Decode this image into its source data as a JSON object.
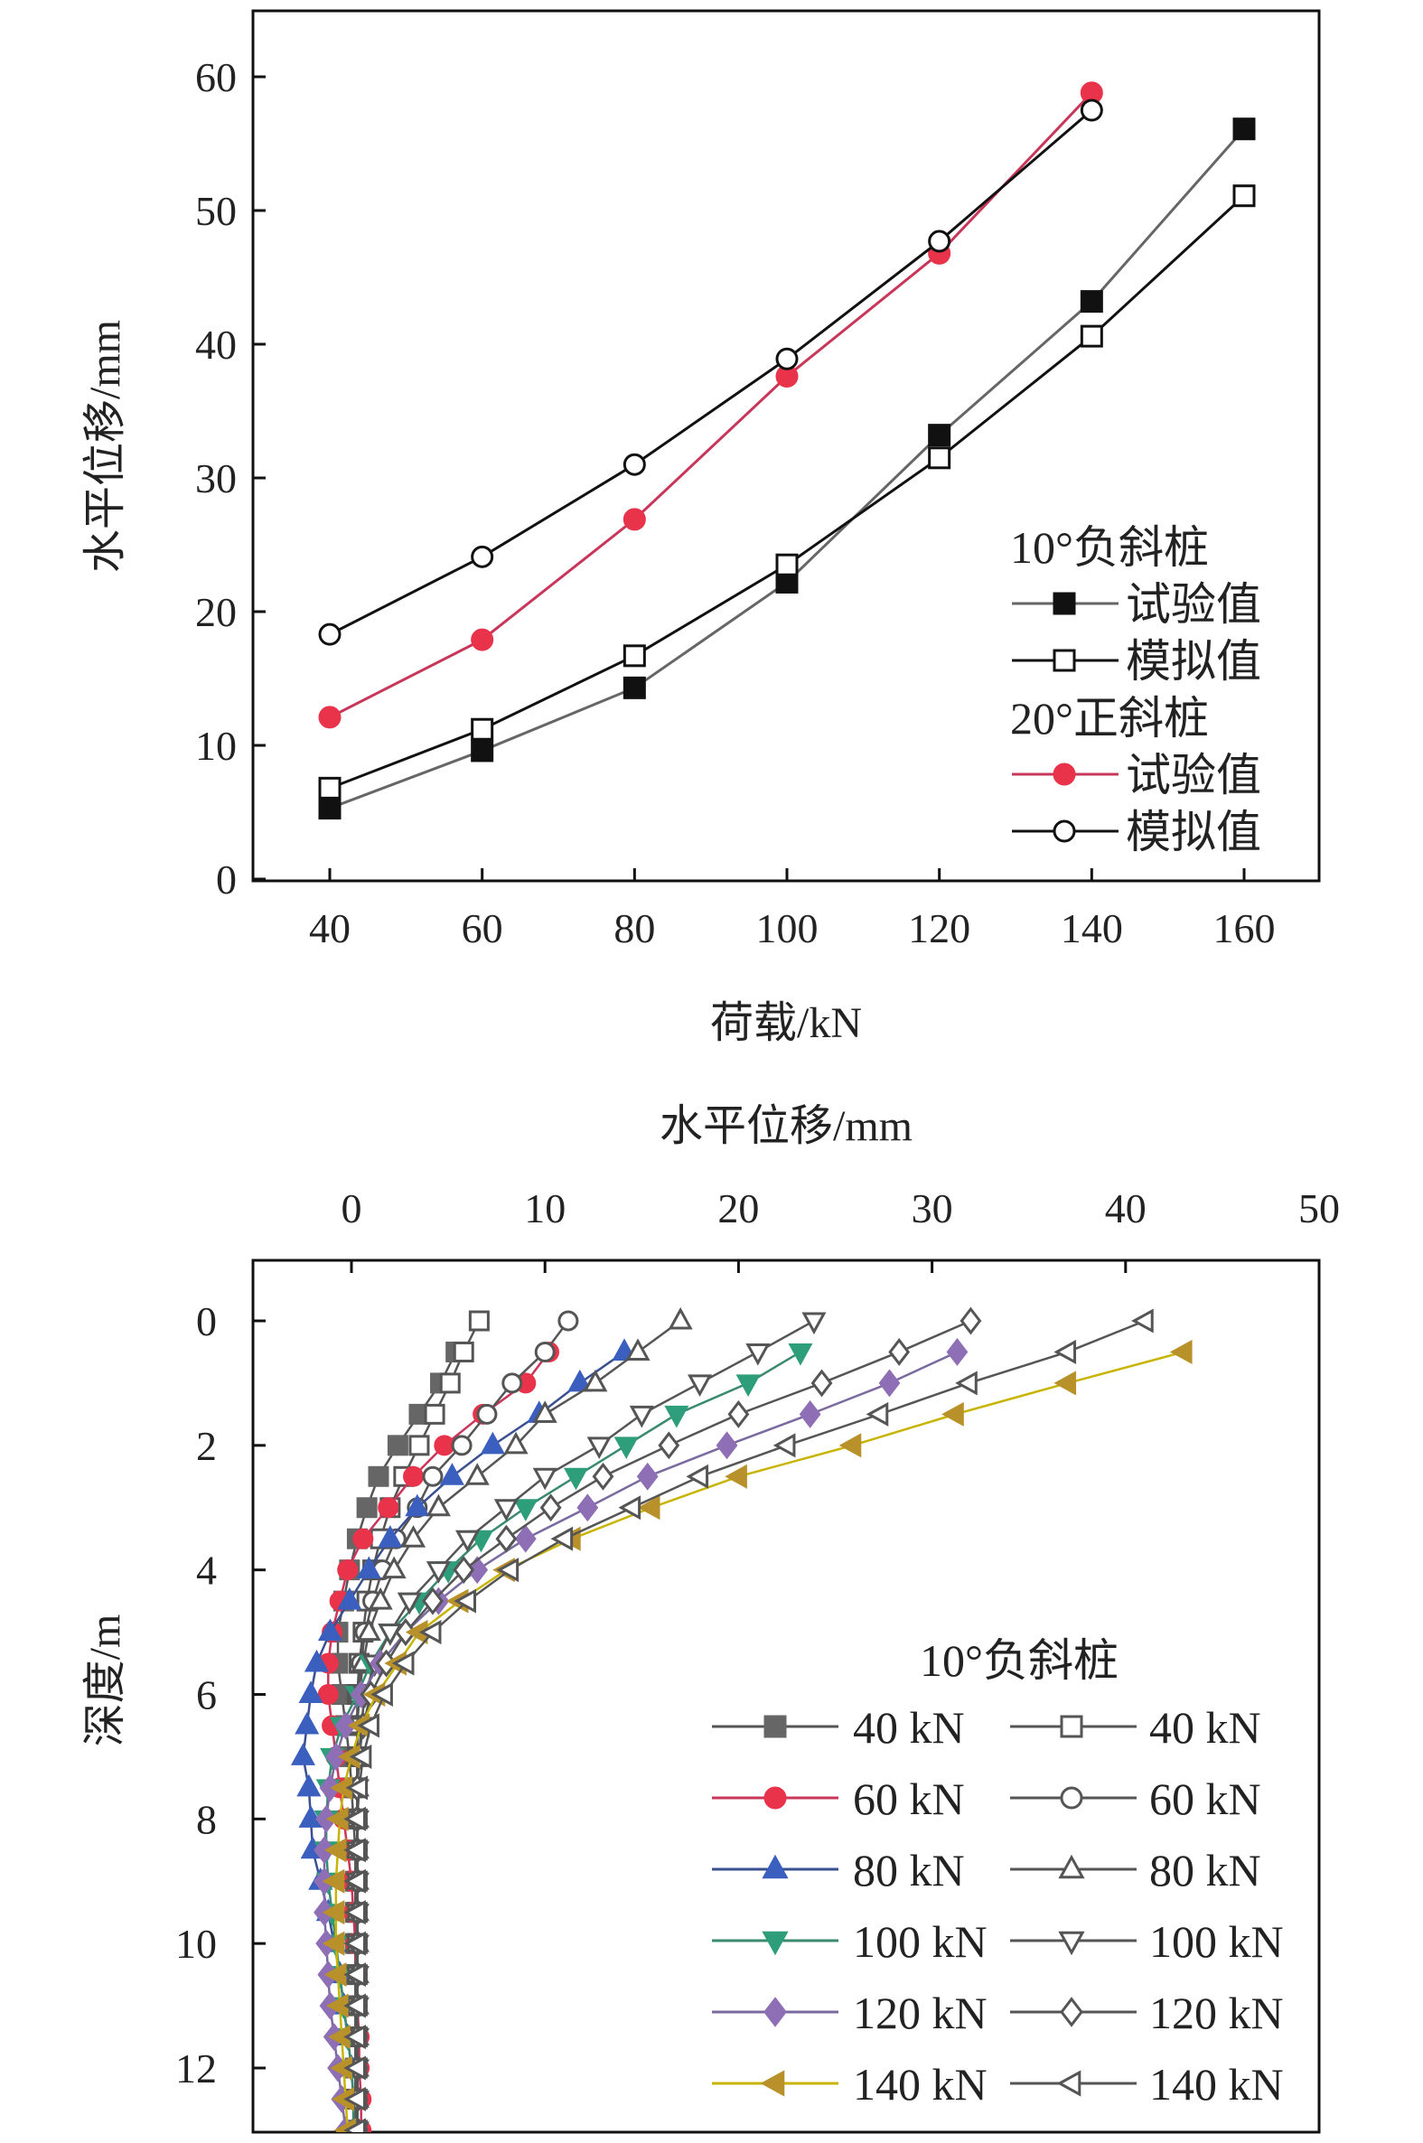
{
  "chart_data": [
    {
      "type": "line",
      "xlabel": "荷载/kN",
      "ylabel": "水平位移/mm",
      "xlim": [
        30,
        170
      ],
      "ylim": [
        0,
        65
      ],
      "xticks": [
        40,
        60,
        80,
        100,
        120,
        140,
        160
      ],
      "yticks": [
        0,
        10,
        20,
        30,
        40,
        50,
        60
      ],
      "legend_position": "bottom-right",
      "legend_groups": [
        "10°负斜桩",
        "20°正斜桩"
      ],
      "series": [
        {
          "name": "试验值",
          "group": "10°负斜桩",
          "marker": "square-filled",
          "color": "#111111",
          "line": "#666666",
          "x": [
            40,
            60,
            80,
            100,
            120,
            140,
            160
          ],
          "y": [
            5.3,
            9.6,
            14.3,
            22.2,
            33.2,
            43.2,
            56.1
          ]
        },
        {
          "name": "模拟值",
          "group": "10°负斜桩",
          "marker": "square-open",
          "color": "#111111",
          "line": "#111111",
          "x": [
            40,
            60,
            80,
            100,
            120,
            140,
            160
          ],
          "y": [
            6.8,
            11.2,
            16.7,
            23.5,
            31.5,
            40.6,
            51.1
          ]
        },
        {
          "name": "试验值",
          "group": "20°正斜桩",
          "marker": "circle-filled",
          "color": "#e8334a",
          "line": "#c8375a",
          "x": [
            40,
            60,
            80,
            100,
            120,
            140
          ],
          "y": [
            12.1,
            17.9,
            26.9,
            37.6,
            46.8,
            58.8
          ]
        },
        {
          "name": "模拟值",
          "group": "20°正斜桩",
          "marker": "circle-open",
          "color": "#111111",
          "line": "#111111",
          "x": [
            40,
            60,
            80,
            100,
            120,
            140
          ],
          "y": [
            18.3,
            24.1,
            31.0,
            38.9,
            47.7,
            57.5
          ]
        }
      ]
    },
    {
      "type": "line",
      "xlabel": "水平位移/mm",
      "ylabel": "深度/m",
      "xaxis_position": "top",
      "xlim": [
        -5,
        50
      ],
      "ylim": [
        13,
        -1
      ],
      "xticks": [
        0,
        10,
        20,
        30,
        40,
        50
      ],
      "yticks": [
        0,
        2,
        4,
        6,
        8,
        10,
        12
      ],
      "legend_title": "10°负斜桩",
      "legend_position": "bottom-right",
      "depth": [
        0,
        0.5,
        1,
        1.5,
        2,
        2.5,
        3,
        3.5,
        4,
        4.5,
        5,
        5.5,
        6,
        6.5,
        7,
        7.5,
        8,
        8.5,
        9,
        9.5,
        10,
        10.5,
        11,
        11.5,
        12,
        12.5,
        13
      ],
      "series": [
        {
          "name": "40 kN",
          "marker": "square-filled",
          "color": "#666666",
          "line": "#555555",
          "x": [
            null,
            5.4,
            4.6,
            3.5,
            2.4,
            1.4,
            0.8,
            0.3,
            -0.1,
            -0.4,
            -0.7,
            -0.7,
            -0.5,
            -0.3,
            -0.1,
            0,
            0.1,
            0.2,
            0.2,
            0.2,
            0.2,
            0.2,
            0.2,
            0.2,
            0.2,
            0.2,
            0.2
          ]
        },
        {
          "name": "40 kN",
          "marker": "square-open",
          "color": "#555555",
          "line": "#555555",
          "x": [
            6.6,
            5.8,
            5.1,
            4.3,
            3.5,
            2.7,
            2.0,
            1.5,
            1.1,
            0.8,
            0.6,
            0.4,
            0.3,
            0.3,
            0.3,
            0.3,
            0.3,
            0.3,
            0.3,
            0.3,
            0.3,
            0.3,
            0.3,
            0.3,
            0.3,
            0.3,
            0.3
          ]
        },
        {
          "name": "60 kN",
          "marker": "circle-filled",
          "color": "#e8334a",
          "line": "#c8375a",
          "x": [
            null,
            10.2,
            9.0,
            6.8,
            4.8,
            3.2,
            1.9,
            0.6,
            -0.2,
            -0.6,
            -1.0,
            -1.2,
            -1.2,
            -1.0,
            -0.8,
            -0.6,
            -0.4,
            -0.2,
            0,
            0.1,
            0.2,
            0.3,
            0.3,
            0.4,
            0.4,
            0.5,
            0.5
          ]
        },
        {
          "name": "60 kN",
          "marker": "circle-open",
          "color": "#555555",
          "line": "#555555",
          "x": [
            11.2,
            10.0,
            8.3,
            7.0,
            5.7,
            4.2,
            3.4,
            2.3,
            1.6,
            1.1,
            0.7,
            0.5,
            0.4,
            0.3,
            0.3,
            0.3,
            0.3,
            0.3,
            0.3,
            0.3,
            0.3,
            0.3,
            0.3,
            0.3,
            0.3,
            0.3,
            0.3
          ]
        },
        {
          "name": "80 kN",
          "marker": "triangle-up-filled",
          "color": "#3a5fbf",
          "line": "#3a4f8f",
          "x": [
            null,
            14.1,
            11.8,
            9.7,
            7.3,
            5.2,
            3.4,
            2.0,
            0.9,
            -0.1,
            -1.1,
            -1.8,
            -2.1,
            -2.3,
            -2.5,
            -2.2,
            -2.1,
            -2.0,
            -1.6,
            -1.2,
            -0.9,
            -0.6,
            -0.4,
            -0.2,
            0,
            0.1,
            0.1
          ]
        },
        {
          "name": "80 kN",
          "marker": "triangle-up-open",
          "color": "#555555",
          "line": "#555555",
          "x": [
            17.0,
            14.8,
            12.6,
            10.0,
            8.5,
            6.5,
            4.5,
            3.2,
            2.2,
            1.5,
            0.9,
            0.6,
            0.4,
            0.3,
            0.3,
            0.3,
            0.3,
            0.3,
            0.3,
            0.3,
            0.3,
            0.3,
            0.3,
            0.3,
            0.3,
            0.3,
            0.3
          ]
        },
        {
          "name": "100 kN",
          "marker": "triangle-down-filled",
          "color": "#2e9e7a",
          "line": "#3a8a70",
          "x": [
            null,
            23.2,
            20.5,
            16.8,
            14.2,
            11.6,
            9.0,
            6.7,
            5.0,
            3.5,
            2.0,
            1.0,
            0.3,
            -0.5,
            -1.0,
            -1.2,
            -1.3,
            -1.3,
            -1.2,
            -1.0,
            -0.8,
            -0.6,
            -0.4,
            -0.2,
            0,
            0.1,
            0.1
          ]
        },
        {
          "name": "100 kN",
          "marker": "triangle-down-open",
          "color": "#555555",
          "line": "#555555",
          "x": [
            23.9,
            21.0,
            18.0,
            15.0,
            12.8,
            10.0,
            8.0,
            6.0,
            4.5,
            3.0,
            2.0,
            1.2,
            0.7,
            0.5,
            0.4,
            0.3,
            0.3,
            0.3,
            0.3,
            0.3,
            0.3,
            0.3,
            0.3,
            0.3,
            0.3,
            0.3,
            0.3
          ]
        },
        {
          "name": "120 kN",
          "marker": "diamond-filled",
          "color": "#8e6fb5",
          "line": "#7a6aa0",
          "x": [
            null,
            31.3,
            27.8,
            23.7,
            19.4,
            15.3,
            12.2,
            9.0,
            6.5,
            4.5,
            2.8,
            1.5,
            0.5,
            -0.3,
            -0.8,
            -1.1,
            -1.3,
            -1.4,
            -1.4,
            -1.4,
            -1.3,
            -1.2,
            -1.1,
            -0.9,
            -0.7,
            -0.5,
            -0.3
          ]
        },
        {
          "name": "120 kN",
          "marker": "diamond-open",
          "color": "#555555",
          "line": "#555555",
          "x": [
            32.0,
            28.3,
            24.3,
            20.0,
            16.4,
            13.0,
            10.3,
            8.0,
            5.8,
            4.2,
            2.8,
            1.8,
            1.0,
            0.6,
            0.4,
            0.3,
            0.3,
            0.3,
            0.3,
            0.3,
            0.3,
            0.3,
            0.3,
            0.3,
            0.3,
            0.3,
            0.3
          ]
        },
        {
          "name": "140 kN",
          "marker": "triangle-left-filled",
          "color": "#b8912a",
          "line": "#c8b400",
          "x": [
            null,
            43.0,
            37.0,
            31.2,
            25.9,
            20.0,
            15.5,
            11.4,
            8.0,
            5.6,
            3.5,
            2.4,
            1.3,
            0.5,
            0,
            -0.4,
            -0.6,
            -0.7,
            -0.8,
            -0.8,
            -0.8,
            -0.7,
            -0.6,
            -0.5,
            -0.4,
            -0.3,
            -0.2
          ]
        },
        {
          "name": "140 kN",
          "marker": "triangle-left-open",
          "color": "#555555",
          "line": "#555555",
          "x": [
            41.0,
            37.0,
            31.9,
            27.3,
            22.5,
            18.0,
            14.5,
            11.0,
            8.2,
            6.0,
            4.2,
            2.8,
            1.7,
            1.0,
            0.6,
            0.4,
            0.3,
            0.3,
            0.3,
            0.3,
            0.3,
            0.3,
            0.3,
            0.3,
            0.3,
            0.3,
            0.3
          ]
        }
      ]
    }
  ]
}
